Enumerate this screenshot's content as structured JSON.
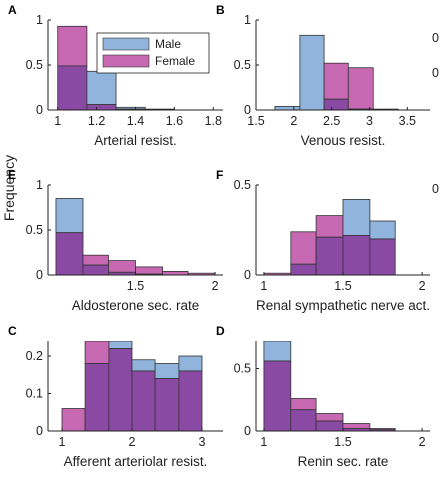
{
  "figure": {
    "ylabel": "Frequency",
    "edge_marks": [
      "0",
      "0",
      "0"
    ]
  },
  "legend": {
    "entries": [
      {
        "label": "Male",
        "color": "#91b4dc"
      },
      {
        "label": "Female",
        "color": "#c768b3"
      }
    ],
    "overlap_color": "#8a4aa4"
  },
  "chart_data": [
    {
      "type": "bar",
      "panel": "A",
      "xlabel": "Arterial resist.",
      "xlim": [
        0.95,
        1.85
      ],
      "ylim": [
        0,
        1
      ],
      "xticks": [
        1,
        1.2,
        1.4,
        1.6,
        1.8
      ],
      "xtick_labels": [
        "1",
        "1.2",
        "1.4",
        "1.6",
        "1.8"
      ],
      "yticks": [
        0,
        0.5,
        1
      ],
      "ytick_labels": [
        "0",
        "0.5",
        "1"
      ],
      "bin_edges": [
        1.0,
        1.15,
        1.3,
        1.45,
        1.6
      ],
      "series": [
        {
          "name": "Male",
          "values": [
            0.49,
            0.43,
            0.03,
            0.01
          ]
        },
        {
          "name": "Female",
          "values": [
            0.93,
            0.06,
            0.01,
            0.0
          ]
        }
      ]
    },
    {
      "type": "bar",
      "panel": "B",
      "xlabel": "Venous resist.",
      "xlim": [
        1.5,
        3.8
      ],
      "ylim": [
        0,
        1
      ],
      "xticks": [
        1.5,
        2,
        2.5,
        3,
        3.5
      ],
      "xtick_labels": [
        "1.5",
        "2",
        "2.5",
        "3",
        "3.5"
      ],
      "yticks": [
        0,
        0.5,
        1
      ],
      "ytick_labels": [
        "0",
        "0.5",
        "1"
      ],
      "bin_edges": [
        1.75,
        2.08,
        2.4,
        2.72,
        3.05,
        3.38,
        3.7
      ],
      "series": [
        {
          "name": "Male",
          "values": [
            0.04,
            0.83,
            0.12,
            0.01,
            0.0,
            0.0
          ]
        },
        {
          "name": "Female",
          "values": [
            0.0,
            0.0,
            0.52,
            0.47,
            0.01,
            0.0
          ]
        }
      ]
    },
    {
      "type": "bar",
      "panel": "E",
      "xlabel": "Aldosterone sec. rate",
      "xlim": [
        0.95,
        2.05
      ],
      "ylim": [
        0,
        1
      ],
      "xticks": [
        1.5,
        2
      ],
      "xtick_labels": [
        "1.5",
        "2"
      ],
      "yticks": [
        0,
        0.5,
        1
      ],
      "ytick_labels": [
        "0",
        "0.5",
        "1"
      ],
      "bin_edges": [
        1.0,
        1.17,
        1.33,
        1.5,
        1.67,
        1.83,
        2.0
      ],
      "series": [
        {
          "name": "Male",
          "values": [
            0.85,
            0.11,
            0.03,
            0.01,
            0.0,
            0.0
          ]
        },
        {
          "name": "Female",
          "values": [
            0.47,
            0.22,
            0.16,
            0.09,
            0.04,
            0.02
          ]
        }
      ]
    },
    {
      "type": "bar",
      "panel": "F",
      "xlabel": "Renal sympathetic nerve act.",
      "xlim": [
        0.95,
        2.05
      ],
      "ylim": [
        0,
        0.5
      ],
      "xticks": [
        1,
        1.5,
        2
      ],
      "xtick_labels": [
        "1",
        "1.5",
        "2"
      ],
      "yticks": [
        0,
        0.5
      ],
      "ytick_labels": [
        "0",
        "0.5"
      ],
      "bin_edges": [
        1.0,
        1.17,
        1.33,
        1.5,
        1.67,
        1.83,
        2.0
      ],
      "series": [
        {
          "name": "Male",
          "values": [
            0.0,
            0.06,
            0.21,
            0.42,
            0.3,
            0.0
          ]
        },
        {
          "name": "Female",
          "values": [
            0.01,
            0.24,
            0.33,
            0.22,
            0.2,
            0.0
          ]
        }
      ]
    },
    {
      "type": "bar",
      "panel": "C",
      "xlabel": "Afferent arteriolar resist.",
      "xlim": [
        0.8,
        3.3
      ],
      "ylim": [
        0,
        0.24
      ],
      "xticks": [
        1,
        2,
        3
      ],
      "xtick_labels": [
        "1",
        "2",
        "3"
      ],
      "yticks": [
        0,
        0.1,
        0.2
      ],
      "ytick_labels": [
        "0",
        "0.1",
        "0.2"
      ],
      "bin_edges": [
        1.0,
        1.33,
        1.67,
        2.0,
        2.33,
        2.67,
        3.0,
        3.33
      ],
      "series": [
        {
          "name": "Male",
          "values": [
            0.0,
            0.18,
            0.25,
            0.19,
            0.18,
            0.2,
            0.0
          ]
        },
        {
          "name": "Female",
          "values": [
            0.06,
            0.25,
            0.22,
            0.16,
            0.14,
            0.16,
            0.0
          ]
        }
      ]
    },
    {
      "type": "bar",
      "panel": "D",
      "xlabel": "Renin sec. rate",
      "xlim": [
        0.95,
        2.05
      ],
      "ylim": [
        0,
        0.72
      ],
      "xticks": [
        1,
        1.5,
        2
      ],
      "xtick_labels": [
        "1",
        "1.5",
        "2"
      ],
      "yticks": [
        0,
        0.5
      ],
      "ytick_labels": [
        "0",
        "0.5"
      ],
      "bin_edges": [
        1.0,
        1.17,
        1.33,
        1.5,
        1.67,
        1.83,
        2.0
      ],
      "series": [
        {
          "name": "Male",
          "values": [
            0.72,
            0.17,
            0.08,
            0.02,
            0.01,
            0.0
          ]
        },
        {
          "name": "Female",
          "values": [
            0.56,
            0.26,
            0.14,
            0.06,
            0.02,
            0.0
          ]
        }
      ]
    }
  ]
}
